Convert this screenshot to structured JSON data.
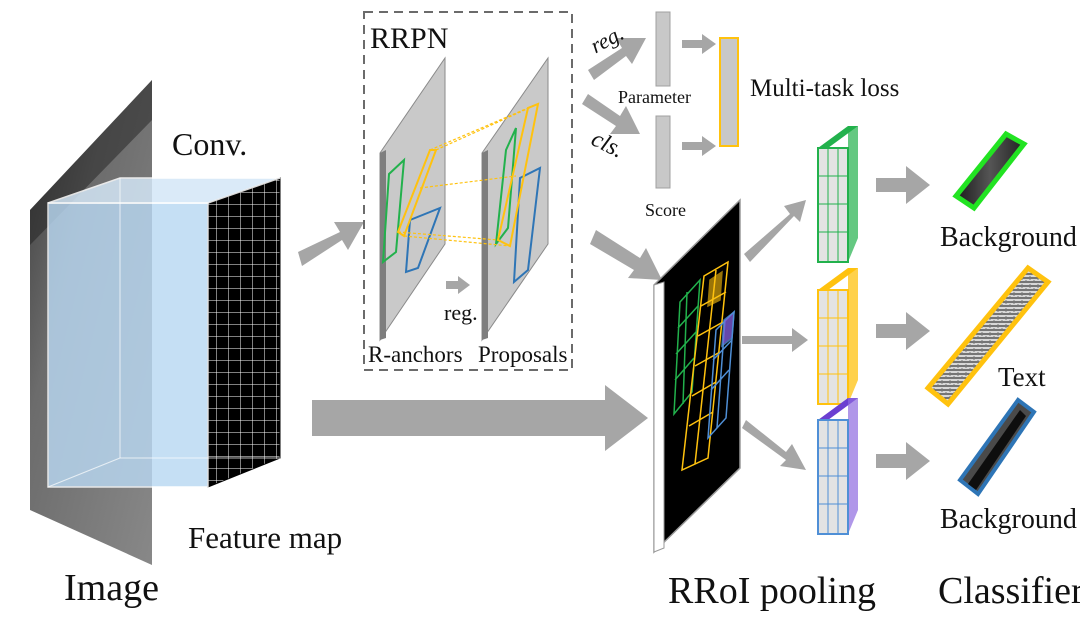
{
  "labels": {
    "conv": "Conv.",
    "image": "Image",
    "feature_map": "Feature map",
    "rrpn": "RRPN",
    "r_anchors": "R-anchors",
    "proposals": "Proposals",
    "reg_inner": "reg.",
    "reg_branch": "reg.",
    "cls_branch": "cls.",
    "parameter": "Parameter",
    "score": "Score",
    "multi_task_loss": "Multi-task loss",
    "rroi_pooling": "RRoI pooling",
    "classifier": "Classifier",
    "background_top": "Background",
    "text": "Text",
    "background_bottom": "Background"
  },
  "colors": {
    "arrow": "#a6a6a6",
    "feature_face": "#b9d8f2",
    "feature_grid": "#000000",
    "green": "#22b14c",
    "yellow": "#ffc20e",
    "blue": "#2e75b6",
    "gray_box": "#c8c8c8"
  }
}
